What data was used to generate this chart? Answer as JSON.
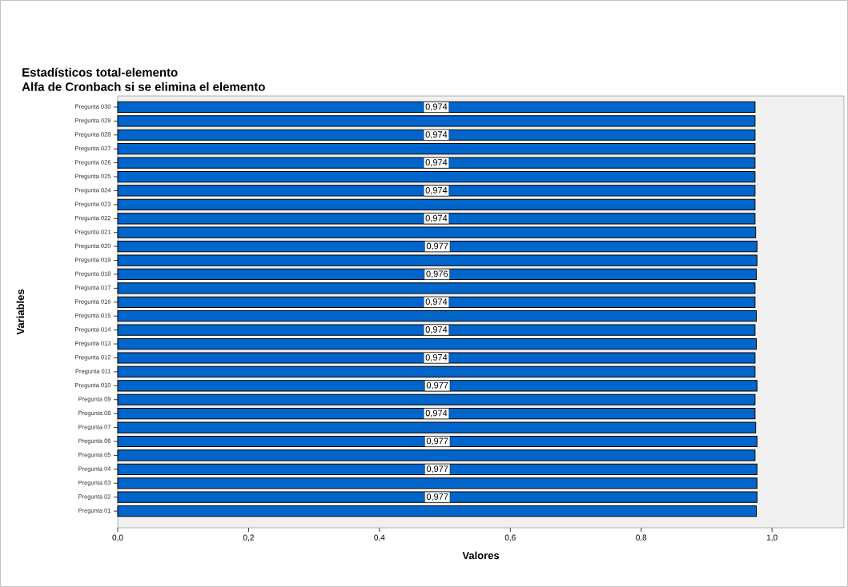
{
  "chart_data": {
    "type": "bar",
    "orientation": "horizontal",
    "title": "Estadísticos total-elemento",
    "subtitle": "Alfa de Cronbach si se elimina el elemento",
    "xlabel": "Valores",
    "ylabel": "Variables",
    "categories": [
      "Pregunta 030",
      "Pregunta 029",
      "Pregunta 028",
      "Pregunta 027",
      "Pregunta 026",
      "Pregunta 025",
      "Pregunta 024",
      "Pregunta 023",
      "Pregunta 022",
      "Pregunta 021",
      "Pregunta 020",
      "Pregunta 019",
      "Pregunta 018",
      "Pregunta 017",
      "Pregunta 016",
      "Pregunta 015",
      "Pregunta 014",
      "Pregunta 013",
      "Pregunta 012",
      "Pregunta 011",
      "Pregunta 010",
      "Pregunta 09",
      "Pregunta 08",
      "Pregunta 07",
      "Pregunta 06",
      "Pregunta 05",
      "Pregunta 04",
      "Pregunta 03",
      "Pregunta 02",
      "Pregunta 01"
    ],
    "values": [
      0.974,
      0.974,
      0.974,
      0.974,
      0.974,
      0.974,
      0.974,
      0.974,
      0.974,
      0.975,
      0.977,
      0.977,
      0.976,
      0.974,
      0.974,
      0.976,
      0.974,
      0.976,
      0.974,
      0.974,
      0.977,
      0.974,
      0.974,
      0.975,
      0.977,
      0.974,
      0.977,
      0.977,
      0.977,
      0.976
    ],
    "value_labels": [
      "0,974",
      null,
      "0,974",
      null,
      "0,974",
      null,
      "0,974",
      null,
      "0,974",
      null,
      "0,977",
      null,
      "0,976",
      null,
      "0,974",
      null,
      "0,974",
      null,
      "0,974",
      null,
      "0,977",
      null,
      "0,974",
      null,
      "0,977",
      null,
      "0,977",
      null,
      "0,977",
      null
    ],
    "color": "#0066cc",
    "xlim": [
      0,
      1.11
    ],
    "xticks": [
      {
        "value": 0,
        "label": "0,0"
      },
      {
        "value": 0.2,
        "label": "0,2"
      },
      {
        "value": 0.4,
        "label": "0,4"
      },
      {
        "value": 0.6,
        "label": "0,6"
      },
      {
        "value": 0.8,
        "label": "0,8"
      },
      {
        "value": 1.0,
        "label": "1,0"
      }
    ],
    "grid": false
  }
}
